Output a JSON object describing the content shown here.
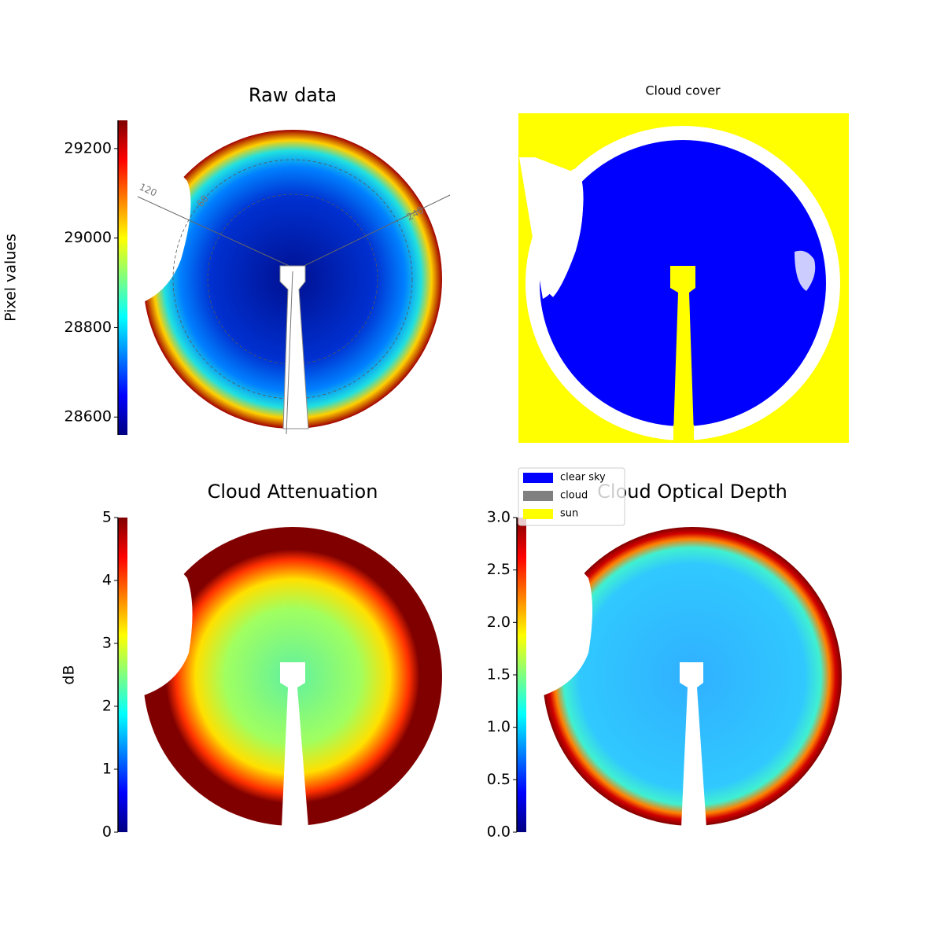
{
  "chart_data": [
    {
      "type": "image",
      "title": "Raw data",
      "ylabel": "Pixel values",
      "colormap": "jet",
      "ylim": [
        28560,
        29263
      ],
      "yticks": [
        28600,
        28800,
        29000,
        29200
      ],
      "annotations": [
        "120",
        "60",
        "240"
      ]
    },
    {
      "type": "image",
      "title": "Cloud cover",
      "legend": [
        {
          "name": "clear sky",
          "color": "#0000ff"
        },
        {
          "name": "cloud",
          "color": "#808080"
        },
        {
          "name": "sun",
          "color": "#ffff00"
        }
      ]
    },
    {
      "type": "image",
      "title": "Cloud Attenuation",
      "ylabel": "dB",
      "colormap": "jet",
      "ylim": [
        0,
        5
      ],
      "yticks": [
        0,
        1,
        2,
        3,
        4,
        5
      ]
    },
    {
      "type": "image",
      "title": "Cloud Optical Depth",
      "colormap": "jet",
      "ylim": [
        0,
        3
      ],
      "yticks": [
        {
          "value": 0,
          "label": "0.0"
        },
        {
          "value": 0.5,
          "label": "0.5"
        },
        {
          "value": 1,
          "label": "1.0"
        },
        {
          "value": 1.5,
          "label": "1.5"
        },
        {
          "value": 2,
          "label": "2.0"
        },
        {
          "value": 2.5,
          "label": "2.5"
        },
        {
          "value": 3,
          "label": "3.0"
        }
      ]
    }
  ]
}
